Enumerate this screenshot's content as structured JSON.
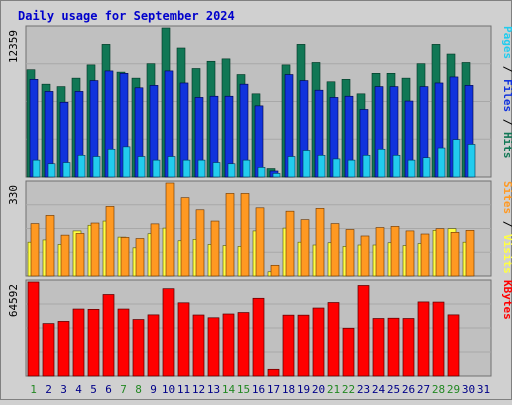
{
  "title": "Daily usage for September 2024",
  "colors": {
    "background": "#d0d0d0",
    "plot_bg": "#c0c0c0",
    "title": "#0000cc",
    "pages": "#1155ee",
    "files": "#1133dd",
    "hits": "#117755",
    "pages_light": "#22ccee",
    "visits": "#ffff44",
    "sites": "#ff9922",
    "kbytes": "#ff0000",
    "weekend_day": "#228822",
    "weekday": "#000088"
  },
  "chart_data": [
    {
      "type": "bar",
      "name": "hits-files-pages",
      "ymax_label": "12359",
      "ylim": [
        0,
        12359
      ],
      "legend": [
        "Pages",
        "Files",
        "Hits"
      ],
      "categories": [
        "1",
        "2",
        "3",
        "4",
        "5",
        "6",
        "7",
        "8",
        "9",
        "10",
        "11",
        "12",
        "13",
        "14",
        "15",
        "16",
        "17",
        "18",
        "19",
        "20",
        "21",
        "22",
        "23",
        "24",
        "25",
        "26",
        "27",
        "28",
        "29",
        "30",
        "31"
      ],
      "series": [
        {
          "name": "Hits",
          "values": [
            8900,
            7700,
            7500,
            8200,
            9300,
            11000,
            8700,
            8200,
            9400,
            12359,
            10700,
            9000,
            9600,
            9800,
            8500,
            6900,
            700,
            9300,
            11000,
            9500,
            7900,
            8100,
            6900,
            8600,
            8600,
            8200,
            9400,
            11000,
            10200,
            9500,
            0
          ]
        },
        {
          "name": "Files",
          "values": [
            8100,
            7100,
            6200,
            7100,
            8000,
            8800,
            8600,
            7400,
            7600,
            8800,
            7800,
            6600,
            6700,
            6700,
            7700,
            5900,
            500,
            8500,
            8000,
            7200,
            6600,
            6700,
            5600,
            7500,
            7500,
            6300,
            7500,
            7800,
            8300,
            7600,
            0
          ]
        },
        {
          "name": "Pages",
          "values": [
            1400,
            1100,
            1200,
            1800,
            1700,
            2300,
            2500,
            1700,
            1400,
            1700,
            1400,
            1400,
            1200,
            1100,
            1400,
            800,
            300,
            1700,
            2200,
            1800,
            1500,
            1400,
            1800,
            2300,
            1800,
            1400,
            1600,
            2400,
            3100,
            2700,
            0
          ]
        }
      ]
    },
    {
      "type": "bar",
      "name": "sites-visits",
      "ymax_label": "330",
      "ylim": [
        0,
        330
      ],
      "legend": [
        "Sites",
        "Visits"
      ],
      "categories": [
        "1",
        "2",
        "3",
        "4",
        "5",
        "6",
        "7",
        "8",
        "9",
        "10",
        "11",
        "12",
        "13",
        "14",
        "15",
        "16",
        "17",
        "18",
        "19",
        "20",
        "21",
        "22",
        "23",
        "24",
        "25",
        "26",
        "27",
        "28",
        "29",
        "30",
        "31"
      ],
      "series": [
        {
          "name": "Visits",
          "values": [
            120,
            128,
            112,
            160,
            180,
            195,
            138,
            100,
            150,
            170,
            125,
            130,
            112,
            108,
            105,
            160,
            15,
            170,
            120,
            110,
            118,
            105,
            110,
            110,
            118,
            108,
            115,
            162,
            168,
            120,
            0
          ]
        },
        {
          "name": "Sites",
          "values": [
            186,
            215,
            145,
            151,
            188,
            247,
            137,
            133,
            185,
            330,
            278,
            235,
            195,
            293,
            293,
            242,
            38,
            230,
            200,
            240,
            186,
            165,
            142,
            172,
            176,
            160,
            149,
            168,
            155,
            162,
            0
          ]
        }
      ]
    },
    {
      "type": "bar",
      "name": "kbytes",
      "ymax_label": "64592",
      "ylim": [
        0,
        64592
      ],
      "legend": [
        "KBytes"
      ],
      "categories": [
        "1",
        "2",
        "3",
        "4",
        "5",
        "6",
        "7",
        "8",
        "9",
        "10",
        "11",
        "12",
        "13",
        "14",
        "15",
        "16",
        "17",
        "18",
        "19",
        "20",
        "21",
        "22",
        "23",
        "24",
        "25",
        "26",
        "27",
        "28",
        "29",
        "30",
        "31"
      ],
      "series": [
        {
          "name": "KBytes",
          "values": [
            64592,
            36000,
            37500,
            46000,
            45800,
            56000,
            46000,
            38800,
            42000,
            60000,
            50300,
            41900,
            40000,
            42600,
            43600,
            53400,
            4600,
            41800,
            41800,
            46700,
            50500,
            32800,
            62200,
            39500,
            39700,
            39500,
            50900,
            50800,
            42000,
            0,
            0
          ]
        }
      ]
    }
  ],
  "days": {
    "labels": [
      "1",
      "2",
      "3",
      "4",
      "5",
      "6",
      "7",
      "8",
      "9",
      "10",
      "11",
      "12",
      "13",
      "14",
      "15",
      "16",
      "17",
      "18",
      "19",
      "20",
      "21",
      "22",
      "23",
      "24",
      "25",
      "26",
      "27",
      "28",
      "29",
      "30",
      "31"
    ],
    "weekend": [
      1,
      7,
      8,
      14,
      15,
      21,
      22,
      28,
      29
    ]
  }
}
